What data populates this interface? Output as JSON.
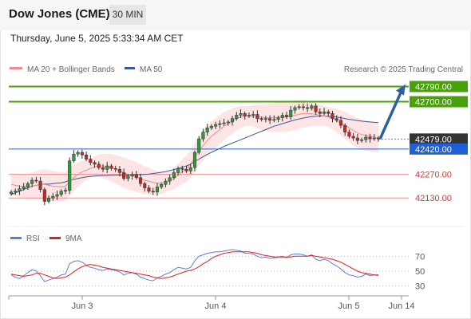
{
  "header": {
    "title": "Dow Jones (CME)",
    "timeframe": "30 MIN",
    "timestamp": "Thursday, June 5, 2025 5:33:34 AM CET"
  },
  "legend": {
    "ma20_label": "MA 20 + Bollinger Bands",
    "ma50_label": "MA 50",
    "copyright": "Research © 2025 Trading Central",
    "rsi_label": "RSI",
    "ma9_label": "9MA"
  },
  "colors": {
    "ma20": "#f28b8b",
    "ma50": "#3a5a9a",
    "bands": "#fde0e0",
    "resistance": "#4aa00a",
    "support": "#ef8f8f",
    "pivot": "#1f5fd8",
    "last": "#333333",
    "arrow": "#2e5fa3",
    "rsi": "#5a7fd6",
    "rsi_ma": "#e02020"
  },
  "levels": [
    {
      "value": "42790.00",
      "type": "resistance"
    },
    {
      "value": "42700.00",
      "type": "resistance"
    },
    {
      "value": "42479.00",
      "type": "last"
    },
    {
      "value": "42420.00",
      "type": "pivot"
    },
    {
      "value": "42270.00",
      "type": "support"
    },
    {
      "value": "42130.00",
      "type": "support"
    }
  ],
  "rsi_axis": [
    "70",
    "50",
    "30"
  ],
  "x_axis": [
    "Jun 3",
    "Jun 4",
    "Jun 5",
    "Jun 14"
  ],
  "chart_data": {
    "type": "candlestick",
    "series_close": [
      42165,
      42170,
      42185,
      42195,
      42215,
      42235,
      42230,
      42180,
      42110,
      42130,
      42140,
      42150,
      42170,
      42175,
      42350,
      42390,
      42400,
      42385,
      42360,
      42340,
      42330,
      42310,
      42300,
      42320,
      42305,
      42300,
      42280,
      42245,
      42260,
      42270,
      42250,
      42215,
      42190,
      42170,
      42165,
      42195,
      42210,
      42230,
      42250,
      42280,
      42305,
      42300,
      42290,
      42310,
      42400,
      42480,
      42520,
      42545,
      42555,
      42565,
      42570,
      42575,
      42580,
      42600,
      42620,
      42630,
      42615,
      42620,
      42625,
      42600,
      42595,
      42600,
      42590,
      42595,
      42605,
      42620,
      42610,
      42650,
      42665,
      42670,
      42665,
      42660,
      42675,
      42640,
      42630,
      42640,
      42630,
      42600,
      42590,
      42560,
      42520,
      42495,
      42485,
      42470,
      42475,
      42490,
      42480,
      42485,
      42479
    ],
    "ma20": [
      42210,
      42205,
      42200,
      42198,
      42195,
      42200,
      42205,
      42210,
      42210,
      42205,
      42200,
      42198,
      42196,
      42200,
      42225,
      42250,
      42270,
      42285,
      42295,
      42305,
      42315,
      42320,
      42320,
      42315,
      42310,
      42300,
      42290,
      42280,
      42270,
      42262,
      42255,
      42245,
      42235,
      42230,
      42222,
      42218,
      42218,
      42222,
      42230,
      42245,
      42265,
      42285,
      42305,
      42330,
      42370,
      42410,
      42440,
      42470,
      42495,
      42515,
      42535,
      42555,
      42570,
      42585,
      42600,
      42610,
      42615,
      42615,
      42615,
      42612,
      42608,
      42605,
      42605,
      42607,
      42608,
      42610,
      42612,
      42616,
      42620,
      42625,
      42630,
      42630,
      42628,
      42625,
      42620,
      42615,
      42610,
      42600,
      42588,
      42575,
      42560,
      42545,
      42530,
      42515,
      42505,
      42500,
      42495,
      42490,
      42486
    ],
    "ma50": [
      42150,
      42160,
      42170,
      42180,
      42190,
      42200,
      42205,
      42210,
      42212,
      42212,
      42215,
      42218,
      42220,
      42225,
      42235,
      42240,
      42245,
      42250,
      42255,
      42258,
      42260,
      42262,
      42262,
      42263,
      42264,
      42265,
      42265,
      42265,
      42265,
      42266,
      42267,
      42268,
      42270,
      42272,
      42275,
      42278,
      42282,
      42286,
      42292,
      42298,
      42305,
      42312,
      42320,
      42330,
      42345,
      42360,
      42375,
      42388,
      42400,
      42412,
      42423,
      42435,
      42445,
      42455,
      42465,
      42475,
      42485,
      42495,
      42505,
      42515,
      42525,
      42535,
      42545,
      42555,
      42562,
      42570,
      42578,
      42585,
      42592,
      42598,
      42603,
      42608,
      42612,
      42614,
      42615,
      42615,
      42614,
      42612,
      42609,
      42605,
      42600,
      42596,
      42592,
      42588,
      42585,
      42582,
      42580,
      42578,
      42576
    ],
    "rsi": [
      45,
      42,
      40,
      44,
      48,
      52,
      50,
      44,
      36,
      38,
      40,
      42,
      45,
      46,
      60,
      63,
      64,
      62,
      58,
      55,
      54,
      52,
      51,
      53,
      52,
      51,
      49,
      45,
      47,
      48,
      46,
      42,
      40,
      38,
      37,
      41,
      43,
      46,
      48,
      52,
      55,
      54,
      53,
      55,
      64,
      70,
      72,
      74,
      75,
      76,
      76,
      77,
      78,
      79,
      78,
      77,
      74,
      74,
      73,
      70,
      68,
      69,
      67,
      68,
      69,
      70,
      68,
      72,
      73,
      73,
      72,
      70,
      72,
      66,
      64,
      66,
      64,
      60,
      57,
      53,
      48,
      45,
      44,
      42,
      43,
      46,
      44,
      45,
      44
    ],
    "rsi_ma": [
      46,
      45,
      44,
      43,
      44,
      45,
      47,
      47,
      45,
      43,
      41,
      40,
      41,
      42,
      45,
      49,
      53,
      56,
      58,
      59,
      58,
      57,
      55,
      54,
      53,
      52,
      51,
      50,
      49,
      48,
      47,
      46,
      45,
      44,
      42,
      41,
      40,
      41,
      42,
      44,
      46,
      48,
      50,
      51,
      53,
      56,
      60,
      63,
      67,
      70,
      72,
      74,
      75,
      76,
      76,
      76,
      76,
      76,
      75,
      74,
      72,
      71,
      70,
      69,
      69,
      69,
      69,
      69,
      70,
      70,
      70,
      70,
      71,
      70,
      69,
      68,
      67,
      66,
      64,
      62,
      59,
      56,
      53,
      50,
      48,
      47,
      46,
      45,
      45
    ],
    "y_range": [
      41980,
      42830
    ],
    "rsi_range": [
      20,
      80
    ]
  }
}
